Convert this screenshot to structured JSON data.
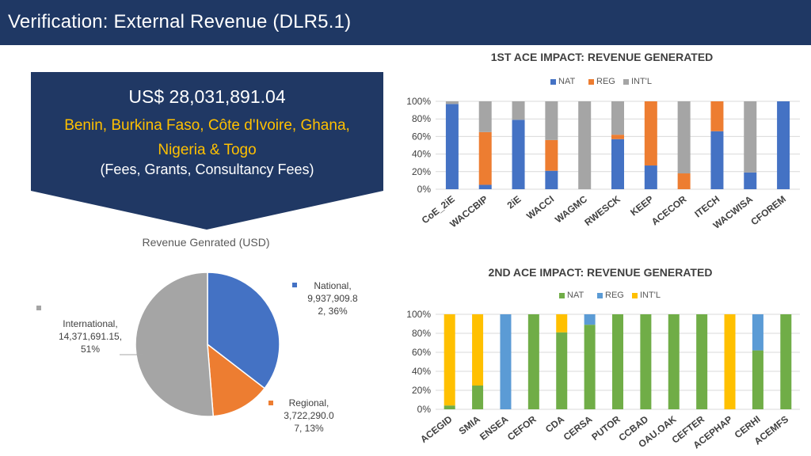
{
  "slide": {
    "title": "Verification: External Revenue (DLR5.1)"
  },
  "callout": {
    "amount": "US$ 28,031,891.04",
    "countries_line1": "Benin, Burkina Faso, Côte d'Ivoire, Ghana,",
    "countries_line2": "Nigeria & Togo",
    "fees": "(Fees, Grants, Consultancy Fees)"
  },
  "colors": {
    "header_bg": "#1f3864",
    "callout_bg": "#203864",
    "callout_accent": "#ffc000",
    "nat_blue": "#4472c4",
    "reg_orange": "#ed7d31",
    "intl_gray": "#a5a5a5",
    "nat_green": "#70ad47",
    "reg_lightblue": "#5b9bd5",
    "intl_yellow": "#ffc000"
  },
  "chart_data": [
    {
      "type": "bar",
      "stacked": "percent",
      "title": "1ST ACE IMPACT: REVENUE GENERATED",
      "categories": [
        "CoE_2iE",
        "WACCBIP",
        "2iE",
        "WACCI",
        "WAGMC",
        "RWESCK",
        "KEEP",
        "ACECOR",
        "ITECH",
        "WACWISA",
        "CFOREM"
      ],
      "series": [
        {
          "name": "NAT",
          "color": "#4472c4",
          "values": [
            97,
            5,
            79,
            21,
            0,
            57,
            27,
            0,
            66,
            19,
            100
          ]
        },
        {
          "name": "REG",
          "color": "#ed7d31",
          "values": [
            0,
            60,
            0,
            35,
            0,
            5,
            73,
            18,
            34,
            0,
            0
          ]
        },
        {
          "name": "INT'L",
          "color": "#a5a5a5",
          "values": [
            3,
            35,
            21,
            44,
            100,
            38,
            0,
            82,
            0,
            81,
            0
          ]
        }
      ],
      "yticks": [
        "0%",
        "20%",
        "40%",
        "60%",
        "80%",
        "100%"
      ],
      "ylim": [
        0,
        100
      ],
      "grid": true,
      "legend": "top"
    },
    {
      "type": "bar",
      "stacked": "percent",
      "title": "2ND ACE IMPACT: REVENUE GENERATED",
      "categories": [
        "ACEGID",
        "SMIA",
        "ENSEA",
        "CEFOR",
        "CDA",
        "CERSA",
        "PUTOR",
        "CCBAD",
        "OAU.OAK",
        "CEFTER",
        "ACEPHAP",
        "CERHI",
        "ACEMFS"
      ],
      "series": [
        {
          "name": "NAT",
          "color": "#70ad47",
          "values": [
            4,
            25,
            0,
            100,
            81,
            89,
            100,
            100,
            100,
            100,
            0,
            62,
            100
          ]
        },
        {
          "name": "REG",
          "color": "#5b9bd5",
          "values": [
            0,
            0,
            100,
            0,
            0,
            11,
            0,
            0,
            0,
            0,
            0,
            38,
            0
          ]
        },
        {
          "name": "INT'L",
          "color": "#ffc000",
          "values": [
            96,
            75,
            0,
            0,
            19,
            0,
            0,
            0,
            0,
            0,
            100,
            0,
            0
          ]
        }
      ],
      "yticks": [
        "0%",
        "20%",
        "40%",
        "60%",
        "80%",
        "100%"
      ],
      "ylim": [
        0,
        100
      ],
      "grid": true,
      "legend": "top"
    },
    {
      "type": "pie",
      "title": "Revenue Genrated (USD)",
      "slices": [
        {
          "name": "National",
          "value": 9937909.82,
          "percent": 36,
          "color": "#4472c4",
          "label_lines": [
            "National,",
            "9,937,909.8",
            "2, 36%"
          ]
        },
        {
          "name": "Regional",
          "value": 3722290.07,
          "percent": 13,
          "color": "#ed7d31",
          "label_lines": [
            "Regional,",
            "3,722,290.0",
            "7, 13%"
          ]
        },
        {
          "name": "International",
          "value": 14371691.15,
          "percent": 51,
          "color": "#a5a5a5",
          "label_lines": [
            "International,",
            "14,371,691.15,",
            "51%"
          ]
        }
      ]
    }
  ]
}
